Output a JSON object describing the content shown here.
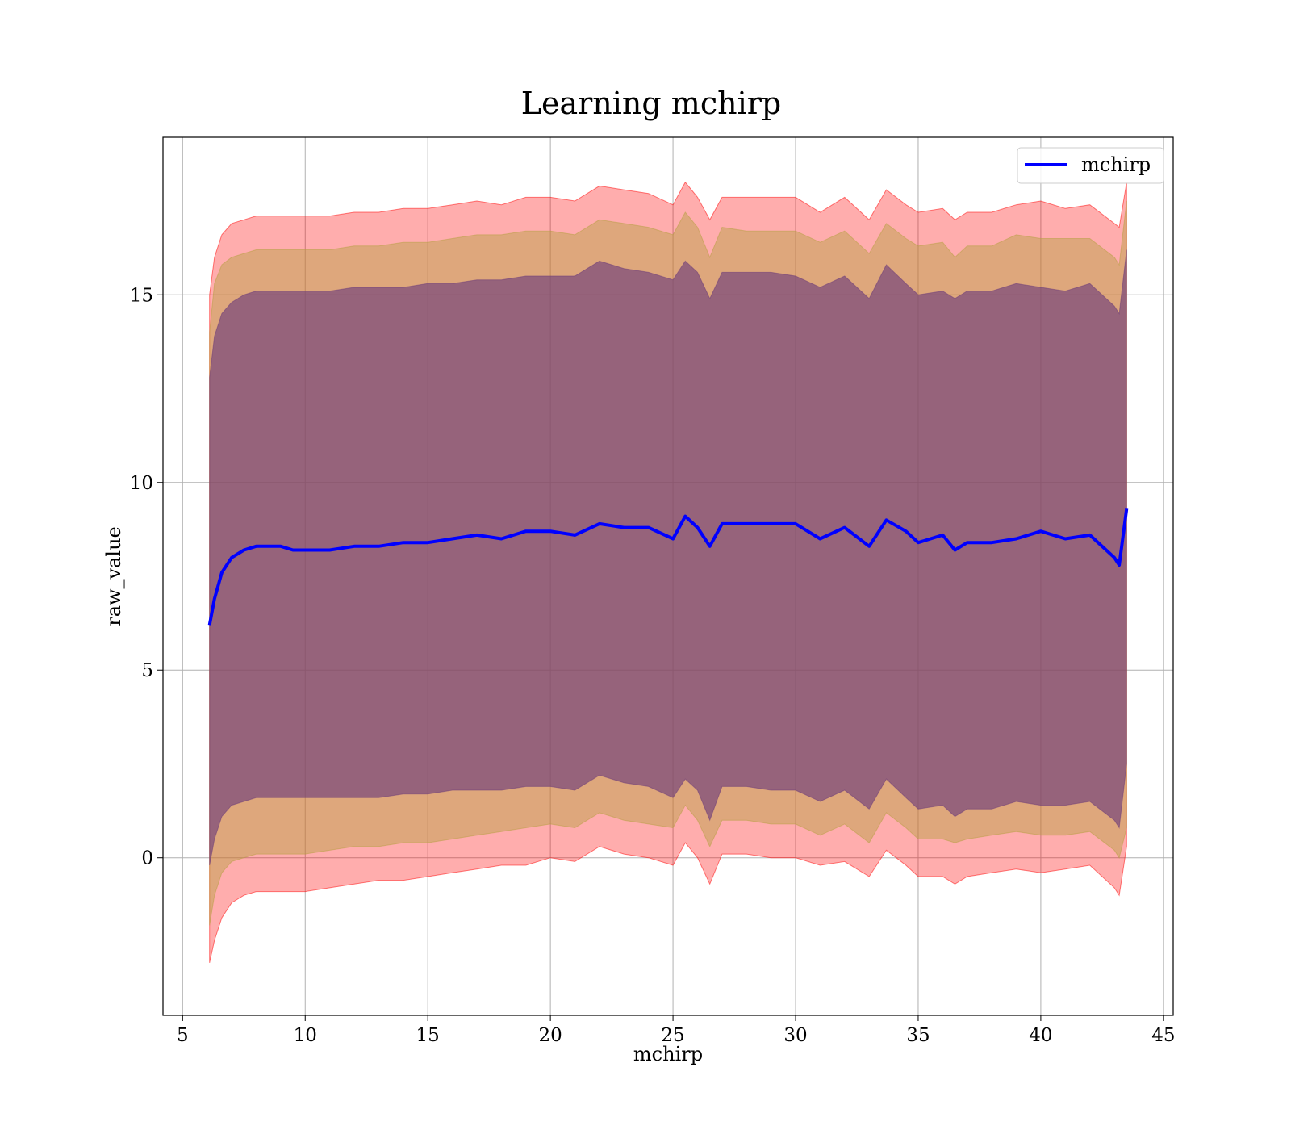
{
  "chart_data": {
    "type": "area",
    "title": "Learning mchirp",
    "xlabel": "mchirp",
    "ylabel": "raw_value",
    "xlim": [
      4.2,
      45.4
    ],
    "ylim": [
      -4.2,
      19.2
    ],
    "xticks": [
      5,
      10,
      15,
      20,
      25,
      30,
      35,
      40,
      45
    ],
    "yticks": [
      0,
      5,
      10,
      15
    ],
    "grid": true,
    "legend": {
      "position": "top-right",
      "entries": [
        "mchirp"
      ]
    },
    "colors": {
      "mean_line": "#0000ff",
      "outer_band": "#ff0000",
      "middle_band": "#b5a040",
      "inner_band": "#6a3a7a"
    },
    "series": [
      {
        "name": "mchirp",
        "kind": "line",
        "x": [
          6.1,
          6.3,
          6.6,
          7.0,
          7.5,
          8.0,
          8.5,
          9.0,
          9.5,
          10,
          11,
          12,
          13,
          14,
          15,
          16,
          17,
          18,
          19,
          20,
          21,
          22,
          23,
          24,
          25,
          25.5,
          26,
          26.5,
          27,
          28,
          29,
          30,
          31,
          32,
          33,
          33.7,
          34.5,
          35,
          36,
          36.5,
          37,
          38,
          39,
          40,
          41,
          42,
          43,
          43.2,
          43.5
        ],
        "y": [
          6.2,
          6.9,
          7.6,
          8.0,
          8.2,
          8.3,
          8.3,
          8.3,
          8.2,
          8.2,
          8.2,
          8.3,
          8.3,
          8.4,
          8.4,
          8.5,
          8.6,
          8.5,
          8.7,
          8.7,
          8.6,
          8.9,
          8.8,
          8.8,
          8.5,
          9.1,
          8.8,
          8.3,
          8.9,
          8.9,
          8.9,
          8.9,
          8.5,
          8.8,
          8.3,
          9.0,
          8.7,
          8.4,
          8.6,
          8.2,
          8.4,
          8.4,
          8.5,
          8.7,
          8.5,
          8.6,
          8.0,
          7.8,
          9.3
        ]
      },
      {
        "name": "outer band",
        "kind": "band",
        "x": [
          6.1,
          6.3,
          6.6,
          7.0,
          7.5,
          8.0,
          9.0,
          10,
          11,
          12,
          13,
          14,
          15,
          16,
          17,
          18,
          19,
          20,
          21,
          22,
          23,
          24,
          25,
          25.5,
          26,
          26.5,
          27,
          28,
          29,
          30,
          31,
          32,
          33,
          33.7,
          34.5,
          35,
          36,
          36.5,
          37,
          38,
          39,
          40,
          41,
          42,
          43,
          43.2,
          43.5
        ],
        "lower": [
          -2.8,
          -2.2,
          -1.6,
          -1.2,
          -1.0,
          -0.9,
          -0.9,
          -0.9,
          -0.8,
          -0.7,
          -0.6,
          -0.6,
          -0.5,
          -0.4,
          -0.3,
          -0.2,
          -0.2,
          0.0,
          -0.1,
          0.3,
          0.1,
          0.0,
          -0.2,
          0.4,
          0.0,
          -0.7,
          0.1,
          0.1,
          0.0,
          0.0,
          -0.2,
          -0.1,
          -0.5,
          0.2,
          -0.2,
          -0.5,
          -0.5,
          -0.7,
          -0.5,
          -0.4,
          -0.3,
          -0.4,
          -0.3,
          -0.2,
          -0.8,
          -1.0,
          0.3
        ],
        "upper": [
          15.0,
          16.0,
          16.6,
          16.9,
          17.0,
          17.1,
          17.1,
          17.1,
          17.1,
          17.2,
          17.2,
          17.3,
          17.3,
          17.4,
          17.5,
          17.4,
          17.6,
          17.6,
          17.5,
          17.9,
          17.8,
          17.7,
          17.4,
          18.0,
          17.6,
          17.0,
          17.6,
          17.6,
          17.6,
          17.6,
          17.2,
          17.6,
          17.0,
          17.8,
          17.4,
          17.2,
          17.3,
          17.0,
          17.2,
          17.2,
          17.4,
          17.5,
          17.3,
          17.4,
          16.9,
          16.8,
          18.0
        ]
      },
      {
        "name": "middle band",
        "kind": "band",
        "x": [
          6.1,
          6.3,
          6.6,
          7.0,
          7.5,
          8.0,
          9.0,
          10,
          11,
          12,
          13,
          14,
          15,
          16,
          17,
          18,
          19,
          20,
          21,
          22,
          23,
          24,
          25,
          25.5,
          26,
          26.5,
          27,
          28,
          29,
          30,
          31,
          32,
          33,
          33.7,
          34.5,
          35,
          36,
          36.5,
          37,
          38,
          39,
          40,
          41,
          42,
          43,
          43.2,
          43.5
        ],
        "lower": [
          -1.8,
          -1.0,
          -0.4,
          -0.1,
          0.0,
          0.1,
          0.1,
          0.1,
          0.2,
          0.3,
          0.3,
          0.4,
          0.4,
          0.5,
          0.6,
          0.7,
          0.8,
          0.9,
          0.8,
          1.2,
          1.0,
          0.9,
          0.8,
          1.4,
          1.0,
          0.3,
          1.0,
          1.0,
          0.9,
          0.9,
          0.6,
          0.9,
          0.4,
          1.2,
          0.8,
          0.5,
          0.5,
          0.4,
          0.5,
          0.6,
          0.7,
          0.6,
          0.6,
          0.7,
          0.2,
          0.0,
          0.8
        ],
        "upper": [
          14.0,
          15.3,
          15.8,
          16.0,
          16.1,
          16.2,
          16.2,
          16.2,
          16.2,
          16.3,
          16.3,
          16.4,
          16.4,
          16.5,
          16.6,
          16.6,
          16.7,
          16.7,
          16.6,
          17.0,
          16.9,
          16.8,
          16.6,
          17.2,
          16.8,
          16.0,
          16.8,
          16.7,
          16.7,
          16.7,
          16.4,
          16.7,
          16.1,
          16.9,
          16.5,
          16.3,
          16.4,
          16.0,
          16.3,
          16.3,
          16.6,
          16.5,
          16.5,
          16.5,
          16.0,
          15.8,
          17.5
        ]
      },
      {
        "name": "inner band",
        "kind": "band",
        "x": [
          6.1,
          6.3,
          6.6,
          7.0,
          7.5,
          8.0,
          9.0,
          10,
          11,
          12,
          13,
          14,
          15,
          16,
          17,
          18,
          19,
          20,
          21,
          22,
          23,
          24,
          25,
          25.5,
          26,
          26.5,
          27,
          28,
          29,
          30,
          31,
          32,
          33,
          33.7,
          34.5,
          35,
          36,
          36.5,
          37,
          38,
          39,
          40,
          41,
          42,
          43,
          43.2,
          43.5
        ],
        "lower": [
          -0.2,
          0.5,
          1.1,
          1.4,
          1.5,
          1.6,
          1.6,
          1.6,
          1.6,
          1.6,
          1.6,
          1.7,
          1.7,
          1.8,
          1.8,
          1.8,
          1.9,
          1.9,
          1.8,
          2.2,
          2.0,
          1.9,
          1.6,
          2.1,
          1.8,
          1.0,
          1.9,
          1.9,
          1.8,
          1.8,
          1.5,
          1.8,
          1.3,
          2.1,
          1.6,
          1.3,
          1.4,
          1.1,
          1.3,
          1.3,
          1.5,
          1.4,
          1.4,
          1.5,
          1.0,
          0.8,
          2.5
        ],
        "upper": [
          12.8,
          13.9,
          14.5,
          14.8,
          15.0,
          15.1,
          15.1,
          15.1,
          15.1,
          15.2,
          15.2,
          15.2,
          15.3,
          15.3,
          15.4,
          15.4,
          15.5,
          15.5,
          15.5,
          15.9,
          15.7,
          15.6,
          15.4,
          15.9,
          15.6,
          14.9,
          15.6,
          15.6,
          15.6,
          15.5,
          15.2,
          15.5,
          14.9,
          15.8,
          15.3,
          15.0,
          15.1,
          14.9,
          15.1,
          15.1,
          15.3,
          15.2,
          15.1,
          15.3,
          14.7,
          14.5,
          16.2
        ]
      }
    ]
  }
}
